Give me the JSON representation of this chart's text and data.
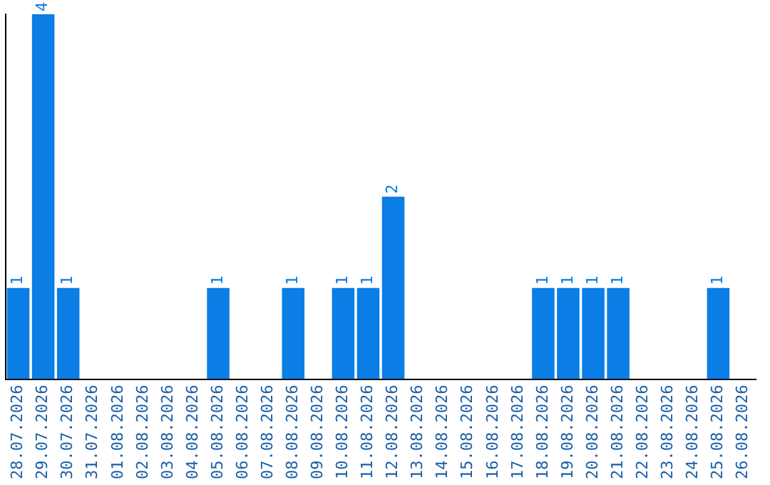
{
  "chart_data": {
    "type": "bar",
    "categories": [
      "28.07.2026",
      "29.07.2026",
      "30.07.2026",
      "31.07.2026",
      "01.08.2026",
      "02.08.2026",
      "03.08.2026",
      "04.08.2026",
      "05.08.2026",
      "06.08.2026",
      "07.08.2026",
      "08.08.2026",
      "09.08.2026",
      "10.08.2026",
      "11.08.2026",
      "12.08.2026",
      "13.08.2026",
      "14.08.2026",
      "15.08.2026",
      "16.08.2026",
      "17.08.2026",
      "18.08.2026",
      "19.08.2026",
      "20.08.2026",
      "21.08.2026",
      "22.08.2026",
      "23.08.2026",
      "24.08.2026",
      "25.08.2026",
      "26.08.2026"
    ],
    "values": [
      1,
      4,
      1,
      0,
      0,
      0,
      0,
      0,
      1,
      0,
      0,
      1,
      0,
      1,
      1,
      2,
      0,
      0,
      0,
      0,
      0,
      1,
      1,
      1,
      1,
      0,
      0,
      0,
      1,
      0
    ],
    "value_labels": [
      "1",
      "4",
      "1",
      null,
      null,
      null,
      null,
      null,
      "1",
      null,
      null,
      "1",
      null,
      "1",
      "1",
      "2",
      null,
      null,
      null,
      null,
      null,
      "1",
      "1",
      "1",
      "1",
      null,
      null,
      null,
      "1",
      null
    ],
    "color": "#0a7ee4",
    "grid": false,
    "legend": false,
    "tick_labels": "x"
  }
}
